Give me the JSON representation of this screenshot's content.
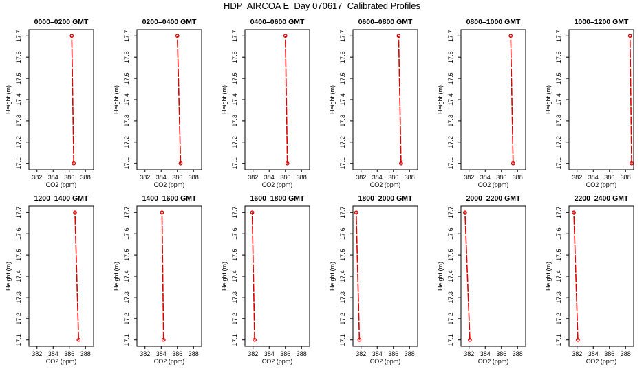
{
  "figure": {
    "title": "HDP  AIRCOA E  Day 070617  Calibrated Profiles"
  },
  "styles": {
    "profile_color": "#e00000",
    "axis_color": "#000000"
  },
  "chart_data": [
    {
      "type": "line",
      "title": "0000–0200 GMT",
      "xlabel": "CO2 (ppm)",
      "ylabel": "Height (m)",
      "xlim": [
        381,
        389
      ],
      "ylim": [
        17.07,
        17.73
      ],
      "xticks": [
        382,
        384,
        386,
        388
      ],
      "yticks": [
        17.1,
        17.2,
        17.3,
        17.4,
        17.5,
        17.6,
        17.7
      ],
      "series": [
        {
          "x": [
            386.55,
            386.3
          ],
          "y": [
            17.1,
            17.7
          ]
        }
      ]
    },
    {
      "type": "line",
      "title": "0200–0400 GMT",
      "xlabel": "CO2 (ppm)",
      "ylabel": "Height (m)",
      "xlim": [
        381,
        389
      ],
      "ylim": [
        17.07,
        17.73
      ],
      "xticks": [
        382,
        384,
        386,
        388
      ],
      "yticks": [
        17.1,
        17.2,
        17.3,
        17.4,
        17.5,
        17.6,
        17.7
      ],
      "series": [
        {
          "x": [
            386.4,
            386.0
          ],
          "y": [
            17.1,
            17.7
          ]
        }
      ]
    },
    {
      "type": "line",
      "title": "0400–0600 GMT",
      "xlabel": "CO2 (ppm)",
      "ylabel": "Height (m)",
      "xlim": [
        381,
        389
      ],
      "ylim": [
        17.07,
        17.73
      ],
      "xticks": [
        382,
        384,
        386,
        388
      ],
      "yticks": [
        17.1,
        17.2,
        17.3,
        17.4,
        17.5,
        17.6,
        17.7
      ],
      "series": [
        {
          "x": [
            386.25,
            386.0
          ],
          "y": [
            17.1,
            17.7
          ]
        }
      ]
    },
    {
      "type": "line",
      "title": "0600–0800 GMT",
      "xlabel": "CO2 (ppm)",
      "ylabel": "Height (m)",
      "xlim": [
        381,
        389
      ],
      "ylim": [
        17.07,
        17.73
      ],
      "xticks": [
        382,
        384,
        386,
        388
      ],
      "yticks": [
        17.1,
        17.2,
        17.3,
        17.4,
        17.5,
        17.6,
        17.7
      ],
      "series": [
        {
          "x": [
            386.95,
            386.65
          ],
          "y": [
            17.1,
            17.7
          ]
        }
      ]
    },
    {
      "type": "line",
      "title": "0800–1000 GMT",
      "xlabel": "CO2 (ppm)",
      "ylabel": "Height (m)",
      "xlim": [
        381,
        389
      ],
      "ylim": [
        17.07,
        17.73
      ],
      "xticks": [
        382,
        384,
        386,
        388
      ],
      "yticks": [
        17.1,
        17.2,
        17.3,
        17.4,
        17.5,
        17.6,
        17.7
      ],
      "series": [
        {
          "x": [
            387.45,
            387.15
          ],
          "y": [
            17.1,
            17.7
          ]
        }
      ]
    },
    {
      "type": "line",
      "title": "1000–1200 GMT",
      "xlabel": "CO2 (ppm)",
      "ylabel": "Height (m)",
      "xlim": [
        381,
        389
      ],
      "ylim": [
        17.07,
        17.73
      ],
      "xticks": [
        382,
        384,
        386,
        388
      ],
      "yticks": [
        17.1,
        17.2,
        17.3,
        17.4,
        17.5,
        17.6,
        17.7
      ],
      "series": [
        {
          "x": [
            388.75,
            388.55
          ],
          "y": [
            17.1,
            17.7
          ]
        }
      ]
    },
    {
      "type": "line",
      "title": "1200–1400 GMT",
      "xlabel": "CO2 (ppm)",
      "ylabel": "Height (m)",
      "xlim": [
        381,
        389
      ],
      "ylim": [
        17.07,
        17.73
      ],
      "xticks": [
        382,
        384,
        386,
        388
      ],
      "yticks": [
        17.1,
        17.2,
        17.3,
        17.4,
        17.5,
        17.6,
        17.7
      ],
      "series": [
        {
          "x": [
            387.15,
            386.7
          ],
          "y": [
            17.1,
            17.7
          ]
        }
      ]
    },
    {
      "type": "line",
      "title": "1400–1600 GMT",
      "xlabel": "CO2 (ppm)",
      "ylabel": "Height (m)",
      "xlim": [
        381,
        389
      ],
      "ylim": [
        17.07,
        17.73
      ],
      "xticks": [
        382,
        384,
        386,
        388
      ],
      "yticks": [
        17.1,
        17.2,
        17.3,
        17.4,
        17.5,
        17.6,
        17.7
      ],
      "series": [
        {
          "x": [
            384.3,
            384.1
          ],
          "y": [
            17.1,
            17.7
          ]
        }
      ]
    },
    {
      "type": "line",
      "title": "1600–1800 GMT",
      "xlabel": "CO2 (ppm)",
      "ylabel": "Height (m)",
      "xlim": [
        381,
        389
      ],
      "ylim": [
        17.07,
        17.73
      ],
      "xticks": [
        382,
        384,
        386,
        388
      ],
      "yticks": [
        17.1,
        17.2,
        17.3,
        17.4,
        17.5,
        17.6,
        17.7
      ],
      "series": [
        {
          "x": [
            382.2,
            381.9
          ],
          "y": [
            17.1,
            17.7
          ]
        }
      ]
    },
    {
      "type": "line",
      "title": "1800–2000 GMT",
      "xlabel": "CO2 (ppm)",
      "ylabel": "Height (m)",
      "xlim": [
        381,
        389
      ],
      "ylim": [
        17.07,
        17.73
      ],
      "xticks": [
        382,
        384,
        386,
        388
      ],
      "yticks": [
        17.1,
        17.2,
        17.3,
        17.4,
        17.5,
        17.6,
        17.7
      ],
      "series": [
        {
          "x": [
            381.8,
            381.4
          ],
          "y": [
            17.1,
            17.7
          ]
        }
      ]
    },
    {
      "type": "line",
      "title": "2000–2200 GMT",
      "xlabel": "CO2 (ppm)",
      "ylabel": "Height (m)",
      "xlim": [
        381,
        389
      ],
      "ylim": [
        17.07,
        17.73
      ],
      "xticks": [
        382,
        384,
        386,
        388
      ],
      "yticks": [
        17.1,
        17.2,
        17.3,
        17.4,
        17.5,
        17.6,
        17.7
      ],
      "series": [
        {
          "x": [
            382.1,
            381.5
          ],
          "y": [
            17.1,
            17.7
          ]
        }
      ]
    },
    {
      "type": "line",
      "title": "2200–2400 GMT",
      "xlabel": "CO2 (ppm)",
      "ylabel": "Height (m)",
      "xlim": [
        381,
        389
      ],
      "ylim": [
        17.07,
        17.73
      ],
      "xticks": [
        382,
        384,
        386,
        388
      ],
      "yticks": [
        17.1,
        17.2,
        17.3,
        17.4,
        17.5,
        17.6,
        17.7
      ],
      "series": [
        {
          "x": [
            382.1,
            381.6
          ],
          "y": [
            17.1,
            17.7
          ]
        }
      ]
    }
  ]
}
